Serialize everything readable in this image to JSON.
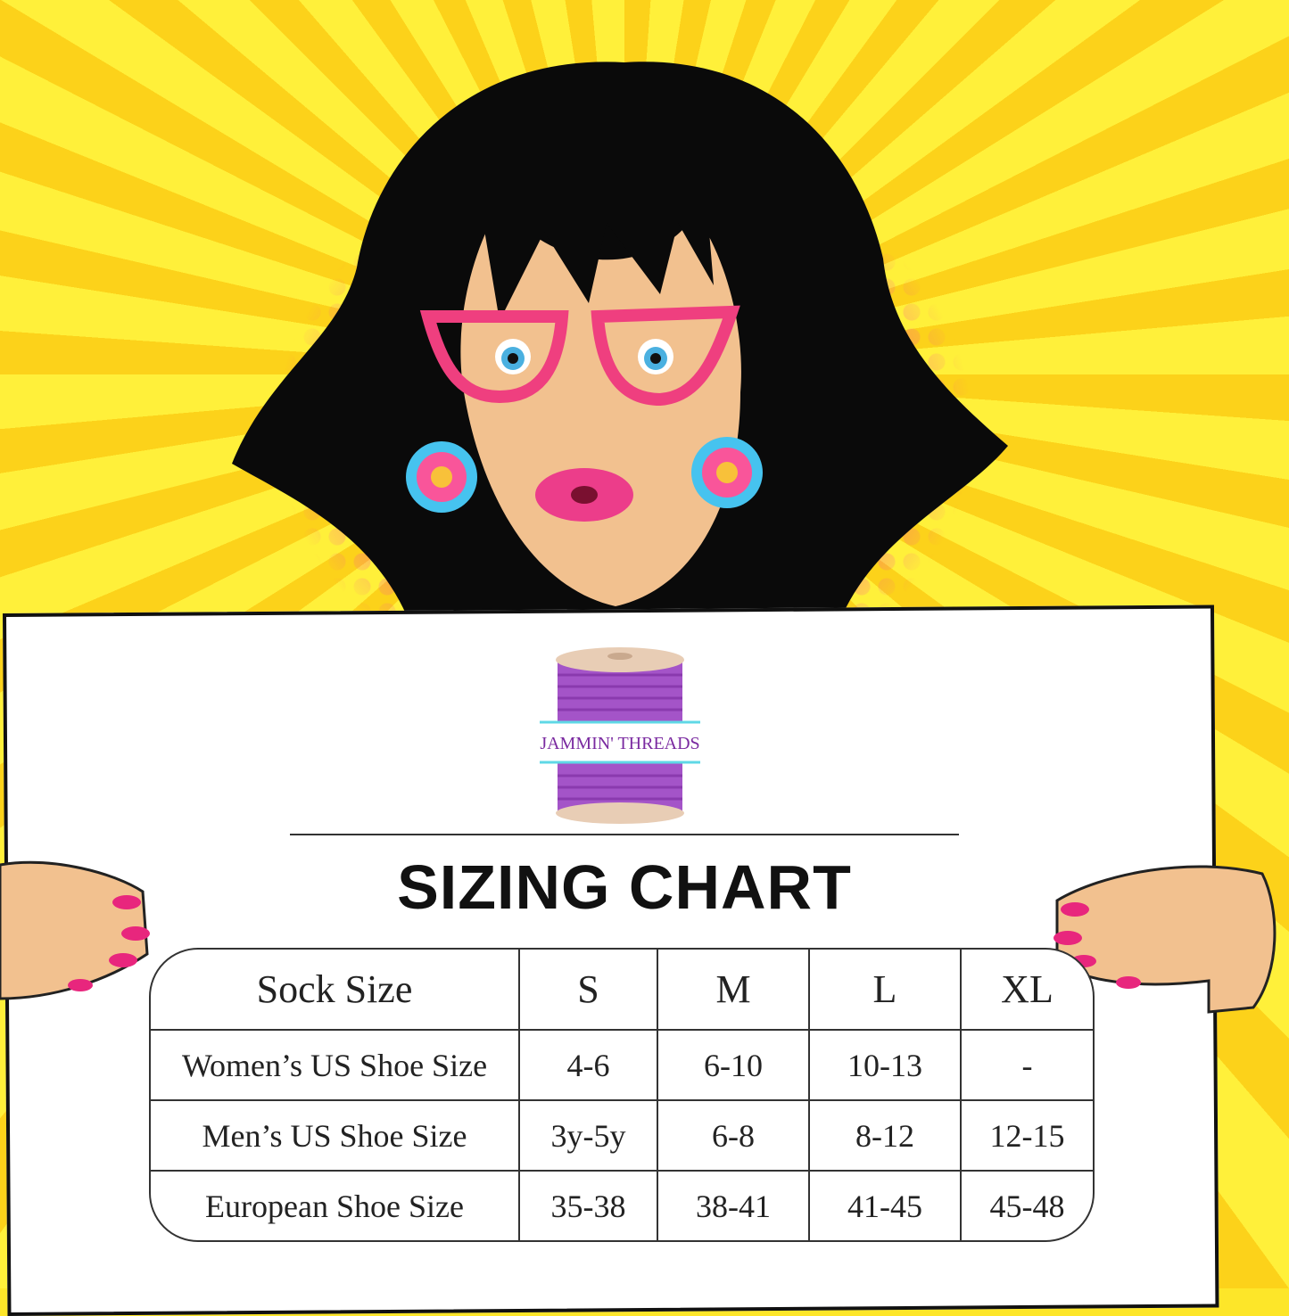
{
  "brand": {
    "logo_text": "JAMMIN' THREADS",
    "colors": {
      "spool_thread": "#a454c8",
      "spool_wood": "#e8cdb5",
      "band": "#5fd8e6",
      "text": "#7a2aa0"
    }
  },
  "title": "SIZING CHART",
  "colors": {
    "background": "#fde629",
    "rays": "#fcd21a",
    "dots": "#f9559a",
    "hair": "#0a0a0a",
    "skin": "#f2c18f",
    "glasses": "#ef3f7f",
    "earrings_outer": "#46c3ef",
    "earrings_inner": "#f9559a"
  },
  "table": {
    "header": [
      "Sock Size",
      "S",
      "M",
      "L",
      "XL"
    ],
    "rows": [
      [
        "Women’s US Shoe Size",
        "4-6",
        "6-10",
        "10-13",
        "-"
      ],
      [
        "Men’s US Shoe Size",
        "3y-5y",
        "6-8",
        "8-12",
        "12-15"
      ],
      [
        "European Shoe Size",
        "35-38",
        "38-41",
        "41-45",
        "45-48"
      ]
    ]
  }
}
